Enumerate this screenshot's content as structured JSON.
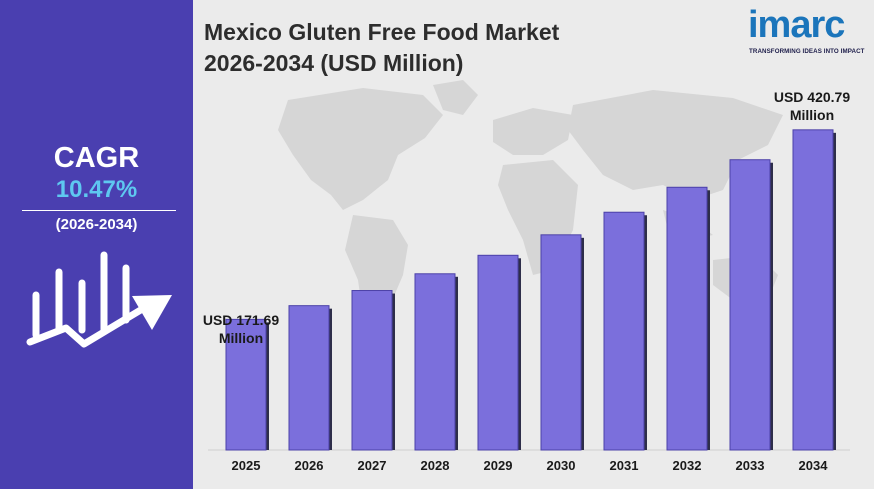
{
  "title_line1": "Mexico Gluten Free Food Market",
  "title_line2": "2026-2034 (USD Million)",
  "cagr": {
    "label": "CAGR",
    "value": "10.47%",
    "period": "(2026-2034)"
  },
  "logo": {
    "wordmark": "imarc",
    "tagline": "TRANSFORMING IDEAS INTO IMPACT"
  },
  "colors": {
    "sidebar": "#4a3fb0",
    "bar": "#7b6fdc",
    "cagr_value": "#5ec8f0",
    "logo": "#1b75bb"
  },
  "icons": {
    "growth": "growth-chart-icon",
    "map": "world-map"
  },
  "chart_data": {
    "type": "bar",
    "title": "Mexico Gluten Free Food Market 2026-2034 (USD Million)",
    "categories": [
      "2025",
      "2026",
      "2027",
      "2028",
      "2029",
      "2030",
      "2031",
      "2032",
      "2033",
      "2034"
    ],
    "values": [
      171.69,
      189.7,
      209.6,
      231.6,
      255.9,
      282.8,
      312.5,
      345.3,
      381.5,
      420.79
    ],
    "ylim": [
      0,
      460
    ],
    "grid": false,
    "annotations": [
      {
        "category": "2025",
        "line1": "USD 171.69",
        "line2": "Million"
      },
      {
        "category": "2034",
        "line1": "USD 420.79",
        "line2": "Million"
      }
    ]
  }
}
